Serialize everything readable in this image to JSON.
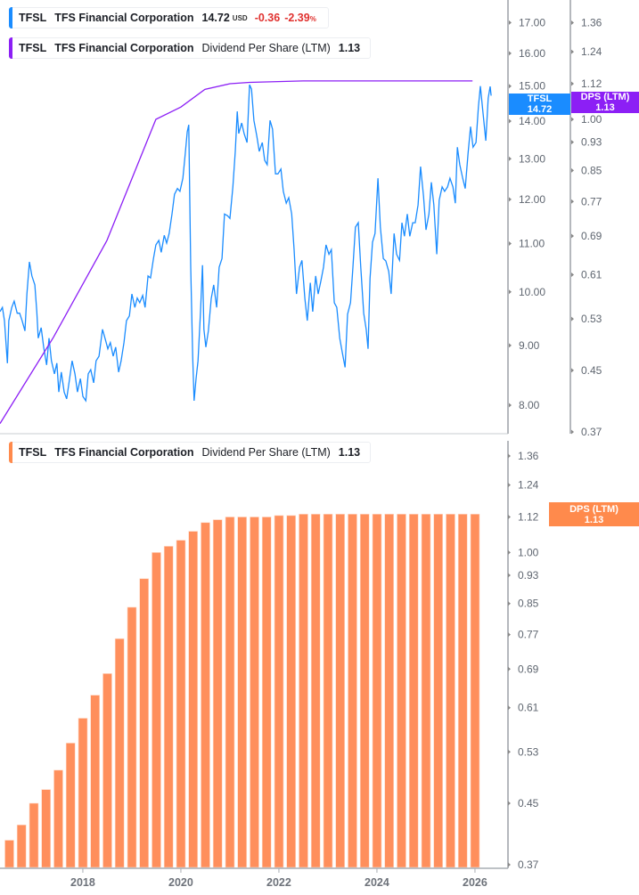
{
  "colors": {
    "price": "#1a8cff",
    "dps_line": "#8c1ff5",
    "bars": "#ff8f5c",
    "price_tag": "#1a8cff",
    "dps_tag": "#8c1ff5",
    "bar_tag": "#ff8a4c",
    "negative": "#e0312f"
  },
  "legend_price": {
    "symbol": "TFSL",
    "name": "TFS Financial Corporation",
    "price": "14.72",
    "currency": "USD",
    "change": "-0.36",
    "change_pct": "-2.39",
    "pct_sign": "%"
  },
  "legend_dps_top": {
    "symbol": "TFSL",
    "name": "TFS Financial Corporation",
    "metric": "Dividend Per Share (LTM)",
    "value": "1.13"
  },
  "legend_dps_bottom": {
    "symbol": "TFSL",
    "name": "TFS Financial Corporation",
    "metric": "Dividend Per Share (LTM)",
    "value": "1.13"
  },
  "tags": {
    "price": {
      "label": "TFSL",
      "value": "14.72"
    },
    "dps_top": {
      "label": "DPS (LTM)",
      "value": "1.13"
    },
    "dps_bottom": {
      "label": "DPS (LTM)",
      "value": "1.13"
    }
  },
  "chart_data": [
    {
      "type": "line",
      "panel": "top",
      "yscale": "log",
      "price_axis": {
        "ticks": [
          "8.00",
          "9.00",
          "10.00",
          "11.00",
          "12.00",
          "13.00",
          "14.00",
          "15.00",
          "16.00",
          "17.00"
        ]
      },
      "dps_axis": {
        "ticks": [
          "0.37",
          "0.45",
          "0.53",
          "0.61",
          "0.69",
          "0.77",
          "0.85",
          "0.93",
          "1.00",
          "1.12",
          "1.24",
          "1.36"
        ]
      },
      "series": [
        {
          "name": "TFSL",
          "axis": "price",
          "x": [
            2016.31,
            2016.36,
            2016.4,
            2016.46,
            2016.49,
            2016.55,
            2016.6,
            2016.66,
            2016.71,
            2016.76,
            2016.82,
            2016.86,
            2016.91,
            2016.96,
            2017.02,
            2017.06,
            2017.09,
            2017.15,
            2017.2,
            2017.26,
            2017.31,
            2017.36,
            2017.42,
            2017.47,
            2017.51,
            2017.56,
            2017.62,
            2017.67,
            2017.73,
            2017.78,
            2017.84,
            2017.89,
            2017.95,
            2018.0,
            2018.06,
            2018.11,
            2018.16,
            2018.22,
            2018.27,
            2018.33,
            2018.4,
            2018.46,
            2018.51,
            2018.56,
            2018.62,
            2018.67,
            2018.73,
            2018.78,
            2018.84,
            2018.89,
            2018.95,
            2019.0,
            2019.06,
            2019.11,
            2019.16,
            2019.22,
            2019.27,
            2019.33,
            2019.38,
            2019.44,
            2019.49,
            2019.55,
            2019.6,
            2019.66,
            2019.71,
            2019.76,
            2019.82,
            2019.87,
            2019.93,
            2019.98,
            2020.04,
            2020.09,
            2020.13,
            2020.16,
            2020.2,
            2020.24,
            2020.27,
            2020.31,
            2020.35,
            2020.4,
            2020.44,
            2020.47,
            2020.51,
            2020.56,
            2020.62,
            2020.67,
            2020.73,
            2020.78,
            2020.84,
            2020.89,
            2020.95,
            2021.0,
            2021.06,
            2021.11,
            2021.15,
            2021.18,
            2021.24,
            2021.29,
            2021.35,
            2021.4,
            2021.44,
            2021.49,
            2021.55,
            2021.6,
            2021.66,
            2021.71,
            2021.76,
            2021.82,
            2021.87,
            2021.93,
            2021.98,
            2022.04,
            2022.09,
            2022.15,
            2022.2,
            2022.26,
            2022.31,
            2022.36,
            2022.42,
            2022.47,
            2022.53,
            2022.58,
            2022.64,
            2022.69,
            2022.75,
            2022.8,
            2022.86,
            2022.91,
            2022.96,
            2023.02,
            2023.07,
            2023.13,
            2023.18,
            2023.24,
            2023.29,
            2023.35,
            2023.4,
            2023.46,
            2023.51,
            2023.56,
            2023.62,
            2023.67,
            2023.73,
            2023.78,
            2023.82,
            2023.86,
            2023.91,
            2023.96,
            2024.02,
            2024.07,
            2024.13,
            2024.18,
            2024.24,
            2024.29,
            2024.35,
            2024.4,
            2024.46,
            2024.51,
            2024.56,
            2024.62,
            2024.67,
            2024.73,
            2024.78,
            2024.84,
            2024.89,
            2024.95,
            2025.0,
            2025.06,
            2025.11,
            2025.16,
            2025.22,
            2025.27,
            2025.33,
            2025.38,
            2025.44,
            2025.49,
            2025.55,
            2025.6,
            2025.64,
            2025.69,
            2025.75,
            2025.8,
            2025.86,
            2025.91,
            2025.96,
            2026.02,
            2026.07,
            2026.11,
            2026.16,
            2026.22,
            2026.27,
            2026.31,
            2026.33
          ],
          "y": [
            9.62,
            9.7,
            9.45,
            8.69,
            9.45,
            9.7,
            9.82,
            9.59,
            9.59,
            9.45,
            9.26,
            9.96,
            10.61,
            10.32,
            10.14,
            9.62,
            9.13,
            9.32,
            8.97,
            8.66,
            9.13,
            8.73,
            8.51,
            8.69,
            8.21,
            8.54,
            8.21,
            8.1,
            8.43,
            8.73,
            8.51,
            8.21,
            8.43,
            8.14,
            8.07,
            8.51,
            8.58,
            8.36,
            8.73,
            8.81,
            9.29,
            9.1,
            8.94,
            9.05,
            8.81,
            8.97,
            8.54,
            8.73,
            9.05,
            9.45,
            9.54,
            9.96,
            9.7,
            9.88,
            9.79,
            9.93,
            9.7,
            10.32,
            10.28,
            10.68,
            10.97,
            11.07,
            10.81,
            11.18,
            11.01,
            11.22,
            11.66,
            12.12,
            12.26,
            12.19,
            12.51,
            13.14,
            13.71,
            13.9,
            10.5,
            8.81,
            8.07,
            8.43,
            8.73,
            9.62,
            10.54,
            9.29,
            8.97,
            9.26,
            9.87,
            10.14,
            9.7,
            10.5,
            10.68,
            11.66,
            11.62,
            11.56,
            12.3,
            13.19,
            14.27,
            13.66,
            13.95,
            13.66,
            13.42,
            15.04,
            14.91,
            14.02,
            13.59,
            13.19,
            13.42,
            12.96,
            12.85,
            14.02,
            13.78,
            12.62,
            12.62,
            12.74,
            12.19,
            11.91,
            12.04,
            11.66,
            10.87,
            9.96,
            10.5,
            10.64,
            9.87,
            9.45,
            10.18,
            9.62,
            10.32,
            9.96,
            10.23,
            10.5,
            10.97,
            10.77,
            10.87,
            9.79,
            9.7,
            9.13,
            8.89,
            8.62,
            9.57,
            9.79,
            10.5,
            11.36,
            11.46,
            10.5,
            9.59,
            9.29,
            8.94,
            10.27,
            11.03,
            11.22,
            12.51,
            11.36,
            10.68,
            10.63,
            10.41,
            9.96,
            11.22,
            10.77,
            10.64,
            11.46,
            11.16,
            11.66,
            11.16,
            11.46,
            11.46,
            11.87,
            12.8,
            12.08,
            11.3,
            11.66,
            12.41,
            11.87,
            10.77,
            11.98,
            12.3,
            12.19,
            12.3,
            12.51,
            12.3,
            11.91,
            13.3,
            12.85,
            12.51,
            12.26,
            13.14,
            13.85,
            13.3,
            13.42,
            14.4,
            15.0,
            14.27,
            13.47,
            14.65,
            14.99,
            14.72
          ]
        },
        {
          "name": "DPS (LTM)",
          "axis": "dps",
          "x": [
            2016.31,
            2017.4,
            2018.49,
            2019.49,
            2020.0,
            2020.49,
            2021.0,
            2021.4,
            2022.49,
            2025.95
          ],
          "y": [
            0.38,
            0.5,
            0.68,
            1.0,
            1.04,
            1.1,
            1.12,
            1.125,
            1.13,
            1.13
          ]
        }
      ]
    },
    {
      "type": "bar",
      "panel": "bottom",
      "yscale": "log",
      "categories": [
        "2016-Q2",
        "2016-Q3",
        "2016-Q4",
        "2017-Q1",
        "2017-Q2",
        "2017-Q3",
        "2017-Q4",
        "2018-Q1",
        "2018-Q2",
        "2018-Q3",
        "2018-Q4",
        "2019-Q1",
        "2019-Q2",
        "2019-Q3",
        "2019-Q4",
        "2020-Q1",
        "2020-Q2",
        "2020-Q3",
        "2020-Q4",
        "2021-Q1",
        "2021-Q2",
        "2021-Q3",
        "2021-Q4",
        "2022-Q1",
        "2022-Q2",
        "2022-Q3",
        "2022-Q4",
        "2023-Q1",
        "2023-Q2",
        "2023-Q3",
        "2023-Q4",
        "2024-Q1",
        "2024-Q2",
        "2024-Q3",
        "2024-Q4",
        "2025-Q1",
        "2025-Q2",
        "2025-Q3",
        "2025-Q4"
      ],
      "values": [
        0.4,
        0.42,
        0.45,
        0.47,
        0.5,
        0.545,
        0.59,
        0.635,
        0.68,
        0.76,
        0.84,
        0.92,
        1.0,
        1.02,
        1.04,
        1.07,
        1.1,
        1.11,
        1.12,
        1.12,
        1.12,
        1.12,
        1.125,
        1.125,
        1.13,
        1.13,
        1.13,
        1.13,
        1.13,
        1.13,
        1.13,
        1.13,
        1.13,
        1.13,
        1.13,
        1.13,
        1.13,
        1.13,
        1.13
      ],
      "y_ticks": [
        "0.37",
        "0.45",
        "0.53",
        "0.61",
        "0.69",
        "0.77",
        "0.85",
        "0.93",
        "1.00",
        "1.12",
        "1.24",
        "1.36"
      ],
      "x_ticks": [
        "2018",
        "2020",
        "2022",
        "2024",
        "2026"
      ]
    }
  ]
}
